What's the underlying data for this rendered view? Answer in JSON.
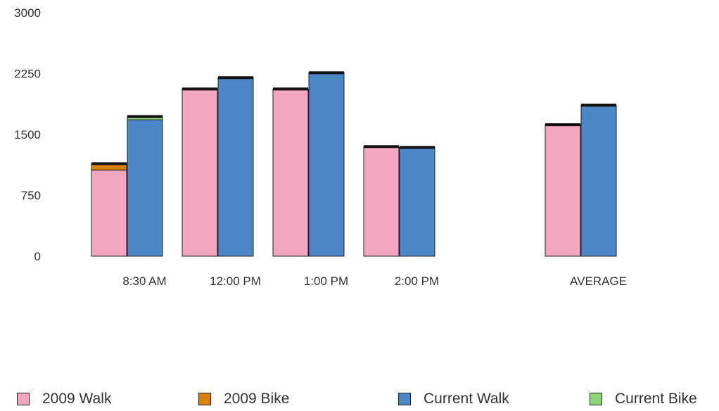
{
  "chart_data": {
    "type": "bar",
    "stacked_groups": true,
    "categories": [
      "8:30 AM",
      "12:00 PM",
      "1:00 PM",
      "2:00 PM",
      "AVERAGE"
    ],
    "ylim": [
      0,
      3000
    ],
    "yticks": [
      "0",
      "750",
      "1500",
      "2250",
      "3000"
    ],
    "xlabel": "",
    "ylabel": "",
    "title": "",
    "grid": false,
    "legend_position": "bottom",
    "series": [
      {
        "name": "2009 Walk",
        "group": "2009",
        "color": "#f2a6bf",
        "values": [
          1060,
          2060,
          2060,
          1350,
          1620
        ]
      },
      {
        "name": "2009 Bike",
        "group": "2009",
        "color": "#d9820b",
        "values": [
          80,
          0,
          0,
          0,
          0
        ]
      },
      {
        "name": "Current Walk",
        "group": "Current",
        "color": "#4c86c6",
        "values": [
          1680,
          2200,
          2260,
          1340,
          1860
        ]
      },
      {
        "name": "Current Bike",
        "group": "Current",
        "color": "#8fd67a",
        "values": [
          40,
          0,
          0,
          0,
          0
        ]
      }
    ],
    "group_cap_color": "#111111"
  }
}
